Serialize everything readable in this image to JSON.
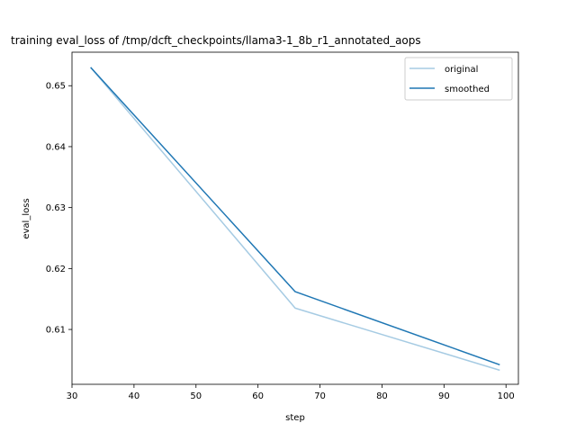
{
  "chart_data": {
    "type": "line",
    "title": "training eval_loss of /tmp/dcft_checkpoints/llama3-1_8b_r1_annotated_aops",
    "xlabel": "step",
    "ylabel": "eval_loss",
    "xlim": [
      30,
      102
    ],
    "ylim": [
      0.601,
      0.6555
    ],
    "x_ticks": [
      30,
      40,
      50,
      60,
      70,
      80,
      90,
      100
    ],
    "x_tick_labels": [
      "30",
      "40",
      "50",
      "60",
      "70",
      "80",
      "90",
      "100"
    ],
    "y_ticks": [
      0.61,
      0.62,
      0.63,
      0.64,
      0.65
    ],
    "y_tick_labels": [
      "0.61",
      "0.62",
      "0.63",
      "0.64",
      "0.65"
    ],
    "grid": false,
    "legend_position": "top-right",
    "series": [
      {
        "name": "original",
        "color": "#a6cbe3",
        "x": [
          33,
          66,
          99
        ],
        "y": [
          0.653,
          0.6135,
          0.6033
        ]
      },
      {
        "name": "smoothed",
        "color": "#1f77b4",
        "x": [
          33,
          66,
          99
        ],
        "y": [
          0.653,
          0.6162,
          0.6042
        ]
      }
    ]
  }
}
